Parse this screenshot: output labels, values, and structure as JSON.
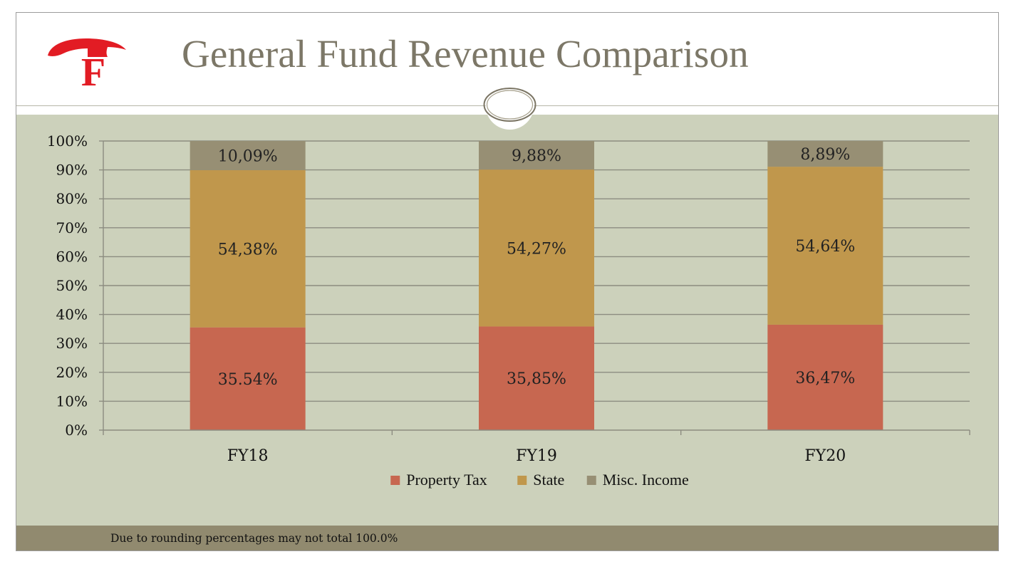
{
  "slide": {
    "title": "General Fund Revenue Comparison",
    "footnote": "Due to rounding percentages may not total 100.0%"
  },
  "logo": {
    "letter": "F",
    "color": "#e21c24"
  },
  "colors": {
    "property_tax": "#c76750",
    "state": "#c0974c",
    "misc_income": "#978f74",
    "gridline": "#8c8c80",
    "axis_text": "#111111"
  },
  "chart_data": {
    "type": "bar",
    "stacked": true,
    "percent": true,
    "title": "",
    "xlabel": "",
    "ylabel": "",
    "ylim": [
      0,
      100
    ],
    "yticks": [
      "0%",
      "10%",
      "20%",
      "30%",
      "40%",
      "50%",
      "60%",
      "70%",
      "80%",
      "90%",
      "100%"
    ],
    "categories": [
      "FY18",
      "FY19",
      "FY20"
    ],
    "series": [
      {
        "name": "Property Tax",
        "values": [
          35.54,
          35.85,
          36.47
        ],
        "labels": [
          "35.54%",
          "35,85%",
          "36,47%"
        ]
      },
      {
        "name": "State",
        "values": [
          54.38,
          54.27,
          54.64
        ],
        "labels": [
          "54,38%",
          "54,27%",
          "54,64%"
        ]
      },
      {
        "name": "Misc. Income",
        "values": [
          10.09,
          9.88,
          8.89
        ],
        "labels": [
          "10,09%",
          "9,88%",
          "8,89%"
        ]
      }
    ],
    "legend": "bottom-center",
    "grid": true
  }
}
